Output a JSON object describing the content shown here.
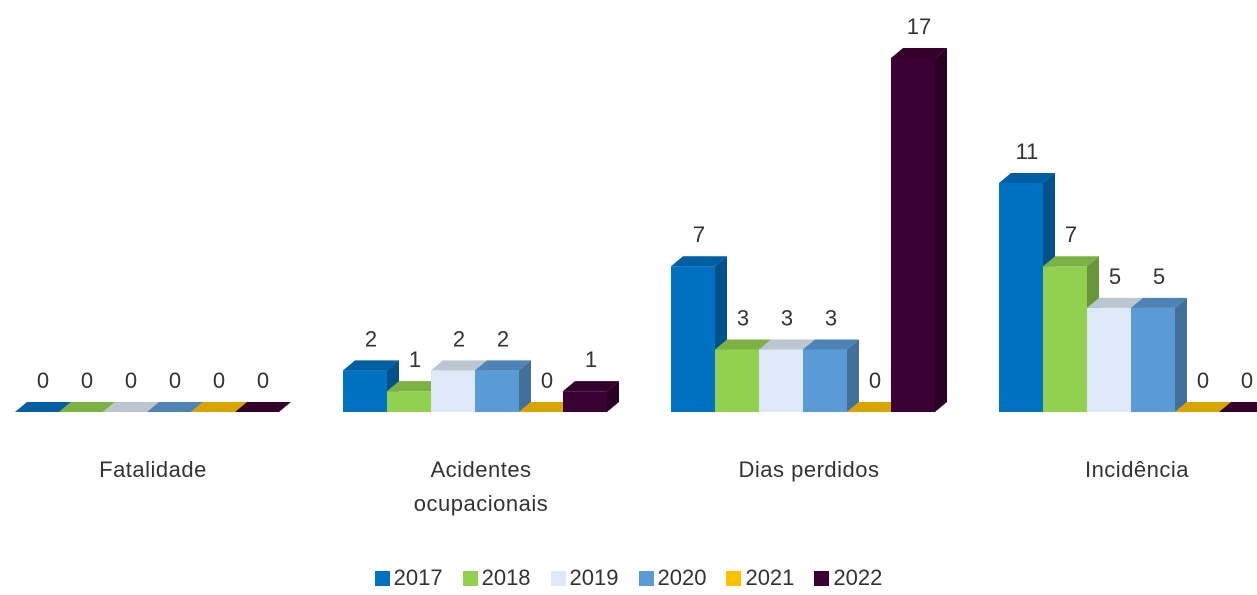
{
  "chart_data": {
    "type": "bar3d",
    "categories": [
      "Fatalidade",
      "Acidentes ocupacionais",
      "Dias perdidos",
      "Incidência"
    ],
    "series": [
      {
        "name": "2017",
        "color": "#0070c0",
        "values": [
          0,
          2,
          7,
          11
        ]
      },
      {
        "name": "2018",
        "color": "#92d050",
        "values": [
          0,
          1,
          3,
          7
        ]
      },
      {
        "name": "2019",
        "color": "#dde9f6",
        "values": [
          0,
          2,
          3,
          5
        ]
      },
      {
        "name": "2020",
        "color": "#5b9bd5",
        "values": [
          0,
          2,
          3,
          5
        ]
      },
      {
        "name": "2021",
        "color": "#ffc000",
        "values": [
          0,
          0,
          0,
          0
        ]
      },
      {
        "name": "2022",
        "color": "#3b0033",
        "values": [
          0,
          1,
          17,
          0
        ]
      }
    ],
    "legend": "bottom"
  }
}
